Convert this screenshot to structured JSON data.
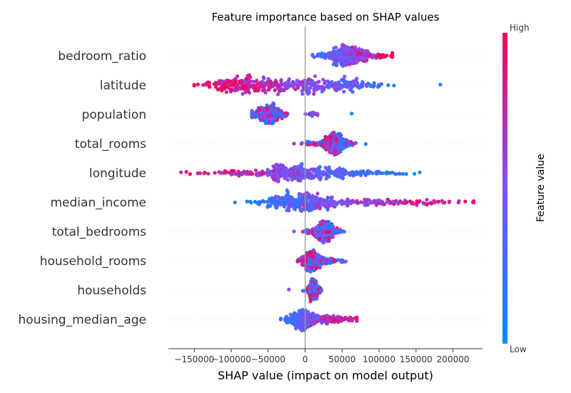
{
  "chart_data": {
    "type": "scatter",
    "subtype": "shap-beeswarm",
    "title": "Feature importance based on SHAP values",
    "xlabel": "SHAP value (impact on model output)",
    "xlim": [
      -185000,
      240000
    ],
    "xticks": [
      {
        "value": -150000,
        "label": "−150000"
      },
      {
        "value": -100000,
        "label": "−100000"
      },
      {
        "value": -50000,
        "label": "−50000"
      },
      {
        "value": 0,
        "label": "0"
      },
      {
        "value": 50000,
        "label": "50000"
      },
      {
        "value": 100000,
        "label": "100000"
      },
      {
        "value": 150000,
        "label": "150000"
      },
      {
        "value": 200000,
        "label": "200000"
      }
    ],
    "colorbar": {
      "label": "Feature value",
      "high_label": "High",
      "low_label": "Low",
      "low_color": "#008bfb",
      "mid_color": "#7c52ff",
      "high_color": "#ff0052"
    },
    "features": [
      {
        "name": "bedroom_ratio",
        "min": 10000,
        "max": 118000,
        "clusters": [
          [
            55000,
            14000,
            0.45
          ],
          [
            70000,
            22000,
            0.35
          ]
        ],
        "color_mode": "high_right"
      },
      {
        "name": "latitude",
        "min": -150000,
        "max": 183000,
        "clusters": [
          [
            -85000,
            28000,
            0.4
          ],
          [
            -20000,
            22000,
            0.25
          ],
          [
            45000,
            30000,
            0.35
          ]
        ],
        "color_mode": "high_left"
      },
      {
        "name": "population",
        "min": -72000,
        "max": 63000,
        "clusters": [
          [
            -50000,
            10000,
            0.95
          ],
          [
            10000,
            5000,
            0.05
          ]
        ],
        "color_mode": "mixed"
      },
      {
        "name": "total_rooms",
        "min": -15000,
        "max": 82000,
        "clusters": [
          [
            40000,
            10000,
            0.95
          ],
          [
            5000,
            6000,
            0.05
          ]
        ],
        "color_mode": "mixed"
      },
      {
        "name": "longitude",
        "min": -168000,
        "max": 155000,
        "clusters": [
          [
            -25000,
            20000,
            0.45
          ],
          [
            -80000,
            35000,
            0.15
          ],
          [
            30000,
            25000,
            0.3
          ],
          [
            90000,
            35000,
            0.1
          ]
        ],
        "color_mode": "high_left"
      },
      {
        "name": "median_income",
        "min": -95000,
        "max": 228000,
        "clusters": [
          [
            -15000,
            25000,
            0.45
          ],
          [
            20000,
            30000,
            0.3
          ],
          [
            110000,
            55000,
            0.25
          ]
        ],
        "color_mode": "high_right"
      },
      {
        "name": "total_bedrooms",
        "min": -15000,
        "max": 53000,
        "clusters": [
          [
            25000,
            9000,
            1.0
          ]
        ],
        "color_mode": "mixed"
      },
      {
        "name": "household_rooms",
        "min": -10000,
        "max": 55000,
        "clusters": [
          [
            8000,
            7000,
            0.8
          ],
          [
            30000,
            10000,
            0.2
          ]
        ],
        "color_mode": "mixed"
      },
      {
        "name": "households",
        "min": -22000,
        "max": 22000,
        "clusters": [
          [
            11000,
            4000,
            1.0
          ]
        ],
        "color_mode": "mixed"
      },
      {
        "name": "housing_median_age",
        "min": -33000,
        "max": 70000,
        "clusters": [
          [
            -5000,
            10000,
            0.6
          ],
          [
            30000,
            18000,
            0.4
          ]
        ],
        "color_mode": "high_right"
      }
    ]
  }
}
